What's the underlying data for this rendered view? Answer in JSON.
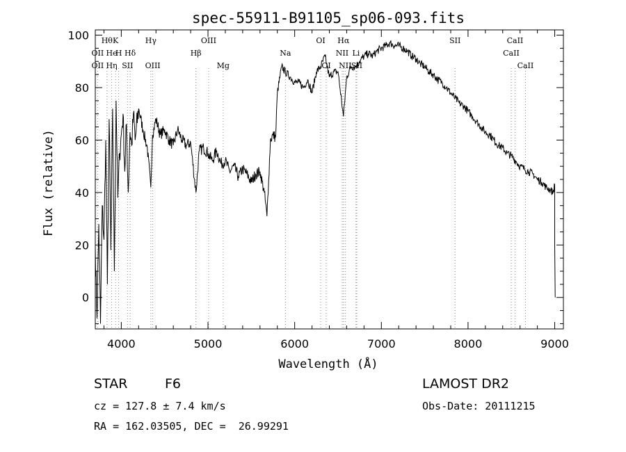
{
  "chart_data": {
    "type": "line",
    "title": "spec-55911-B91105_sp06-093.fits",
    "xlabel": "Wavelength (Å)",
    "ylabel": "Flux (relative)",
    "xlim": [
      3700,
      9100
    ],
    "ylim": [
      -12,
      102
    ],
    "xticks": [
      4000,
      5000,
      6000,
      7000,
      8000,
      9000
    ],
    "yticks": [
      0,
      20,
      40,
      60,
      80,
      100
    ],
    "grid": false,
    "legend": "none",
    "series": [
      {
        "color": "#000000",
        "x": [
          3700,
          3720,
          3740,
          3760,
          3780,
          3800,
          3820,
          3840,
          3860,
          3880,
          3900,
          3920,
          3940,
          3960,
          3980,
          4000,
          4020,
          4040,
          4060,
          4080,
          4100,
          4120,
          4140,
          4160,
          4200,
          4250,
          4300,
          4340,
          4360,
          4400,
          4450,
          4500,
          4550,
          4600,
          4650,
          4700,
          4750,
          4800,
          4861,
          4900,
          4950,
          5000,
          5050,
          5100,
          5150,
          5200,
          5250,
          5300,
          5350,
          5400,
          5450,
          5500,
          5550,
          5600,
          5650,
          5680,
          5700,
          5720,
          5750,
          5780,
          5800,
          5850,
          5893,
          5950,
          6000,
          6050,
          6100,
          6150,
          6200,
          6250,
          6300,
          6350,
          6400,
          6450,
          6500,
          6563,
          6600,
          6650,
          6700,
          6750,
          6800,
          6850,
          6900,
          6950,
          7000,
          7050,
          7100,
          7150,
          7200,
          7250,
          7300,
          7350,
          7400,
          7450,
          7500,
          7550,
          7600,
          7650,
          7700,
          7750,
          7800,
          7850,
          7900,
          7950,
          8000,
          8050,
          8100,
          8150,
          8200,
          8250,
          8300,
          8350,
          8400,
          8450,
          8500,
          8550,
          8600,
          8650,
          8700,
          8750,
          8800,
          8850,
          8900,
          8950,
          8980,
          9000
        ],
        "y": [
          20,
          -8,
          28,
          -10,
          35,
          22,
          60,
          5,
          68,
          18,
          72,
          10,
          75,
          38,
          55,
          62,
          70,
          48,
          66,
          40,
          63,
          58,
          70,
          60,
          72,
          64,
          57,
          42,
          62,
          68,
          62,
          64,
          60,
          58,
          64,
          60,
          58,
          59,
          40,
          56,
          57,
          55,
          52,
          56,
          51,
          52,
          48,
          50,
          46,
          49,
          47,
          44,
          47,
          48,
          40,
          31,
          45,
          60,
          62,
          61,
          78,
          88,
          86,
          84,
          82,
          82,
          80,
          83,
          78,
          86,
          88,
          92,
          84,
          86,
          86,
          69,
          84,
          88,
          88,
          90,
          92,
          93,
          92,
          94,
          95,
          96,
          97,
          96,
          96,
          95,
          94,
          92,
          91,
          89,
          88,
          86,
          85,
          83,
          82,
          80,
          78,
          76,
          74,
          73,
          71,
          69,
          67,
          65,
          63,
          62,
          60,
          58,
          57,
          55,
          54,
          52,
          50,
          49,
          48,
          47,
          45,
          44,
          42,
          41,
          40,
          43
        ]
      }
    ],
    "line_labels": [
      {
        "x": 3835,
        "text": "Hθ",
        "row": 1
      },
      {
        "x": 3727,
        "text": "OII",
        "row": 2
      },
      {
        "x": 3727,
        "text": "OII",
        "row": 3
      },
      {
        "x": 3889,
        "text": "Hη",
        "row": 3
      },
      {
        "x": 3934,
        "text": "K",
        "row": 1
      },
      {
        "x": 3889,
        "text": "He",
        "row": 2
      },
      {
        "x": 3970,
        "text": "H",
        "row": 2
      },
      {
        "x": 4072,
        "text": "SII",
        "row": 3
      },
      {
        "x": 4102,
        "text": "Hδ",
        "row": 2
      },
      {
        "x": 4341,
        "text": "Hγ",
        "row": 1
      },
      {
        "x": 4363,
        "text": "OIII",
        "row": 3
      },
      {
        "x": 4861,
        "text": "Hβ",
        "row": 2
      },
      {
        "x": 5007,
        "text": "OIII",
        "row": 1
      },
      {
        "x": 5175,
        "text": "Mg",
        "row": 3
      },
      {
        "x": 5893,
        "text": "Na",
        "row": 2
      },
      {
        "x": 6300,
        "text": "OI",
        "row": 1
      },
      {
        "x": 6364,
        "text": "OI",
        "row": 3
      },
      {
        "x": 6563,
        "text": "Hα",
        "row": 1
      },
      {
        "x": 6548,
        "text": "NII",
        "row": 2
      },
      {
        "x": 6583,
        "text": "NII",
        "row": 3
      },
      {
        "x": 6708,
        "text": "Li",
        "row": 2
      },
      {
        "x": 6717,
        "text": "SII",
        "row": 3
      },
      {
        "x": 7850,
        "text": "SII",
        "row": 1
      },
      {
        "x": 8498,
        "text": "CaII",
        "row": 2
      },
      {
        "x": 8542,
        "text": "CaII",
        "row": 1
      },
      {
        "x": 8662,
        "text": "CaII",
        "row": 3
      }
    ],
    "line_markers": [
      3727,
      3835,
      3889,
      3934,
      3970,
      4072,
      4102,
      4341,
      4363,
      4861,
      5007,
      5175,
      5893,
      6300,
      6364,
      6548,
      6563,
      6583,
      6708,
      6717,
      7850,
      8498,
      8542,
      8662
    ]
  },
  "info": {
    "object_class": "STAR",
    "subclass": "F6",
    "survey": "LAMOST DR2",
    "redshift": "cz = 127.8 ± 7.4 km/s",
    "obs_date": "Obs-Date: 20111215",
    "coords": "RA = 162.03505, DEC =  26.99291"
  }
}
